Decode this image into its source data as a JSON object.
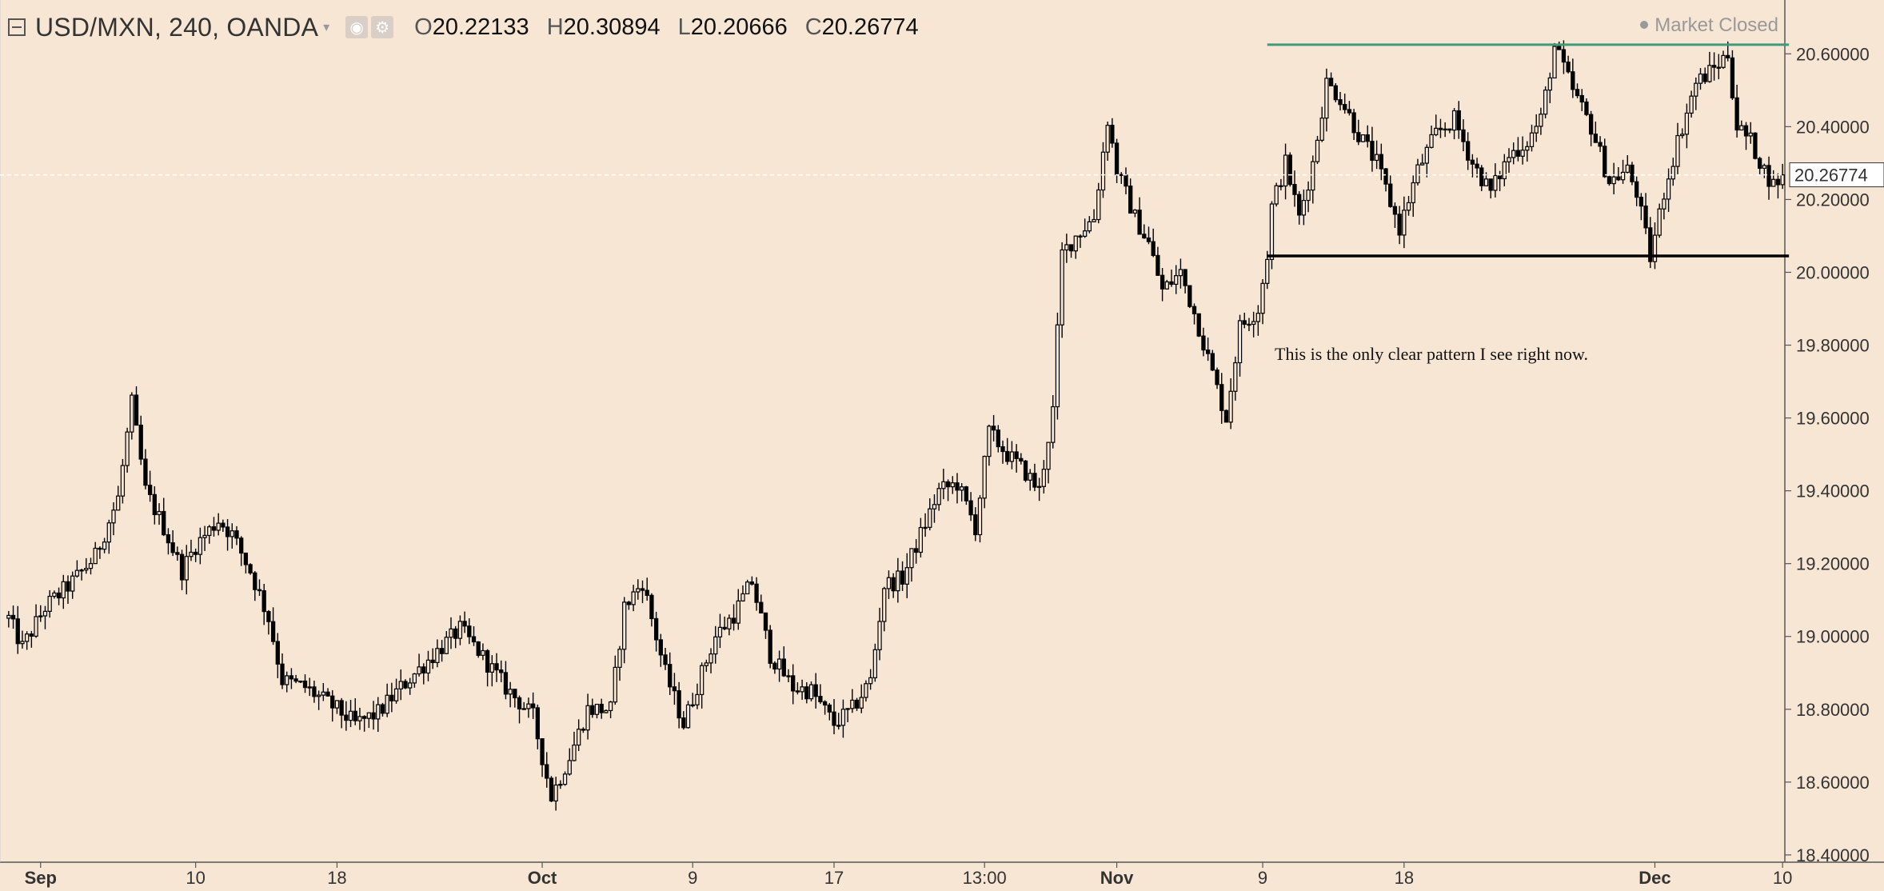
{
  "header": {
    "symbol": "USD/MXN, 240, OANDA",
    "open_label": "O",
    "open": "20.22133",
    "high_label": "H",
    "high": "20.30894",
    "low_label": "L",
    "low": "20.20666",
    "close_label": "C",
    "close": "20.26774"
  },
  "status": {
    "market": "Market Closed"
  },
  "annotation": "This is the only clear pattern I see right now.",
  "current_price_label": "20.26774",
  "chart_data": {
    "type": "candlestick",
    "background": "#f7e6d3",
    "candle_color": "#000000",
    "ylim": [
      18.38,
      20.66
    ],
    "y_ticks": [
      "20.60000",
      "20.40000",
      "20.20000",
      "20.00000",
      "19.80000",
      "19.60000",
      "19.40000",
      "19.20000",
      "19.00000",
      "18.80000",
      "18.60000",
      "18.40000"
    ],
    "y_tick_values": [
      20.6,
      20.4,
      20.2,
      20.0,
      19.8,
      19.6,
      19.4,
      19.2,
      19.0,
      18.8,
      18.6,
      18.4
    ],
    "x_ticks": [
      {
        "label": "Sep",
        "bar": 7,
        "bold": true
      },
      {
        "label": "10",
        "bar": 41,
        "bold": false
      },
      {
        "label": "18",
        "bar": 72,
        "bold": false
      },
      {
        "label": "Oct",
        "bar": 117,
        "bold": true
      },
      {
        "label": "9",
        "bar": 150,
        "bold": false
      },
      {
        "label": "17",
        "bar": 181,
        "bold": false
      },
      {
        "label": "13:00",
        "bar": 214,
        "bold": false
      },
      {
        "label": "Nov",
        "bar": 243,
        "bold": true
      },
      {
        "label": "9",
        "bar": 275,
        "bold": false
      },
      {
        "label": "18",
        "bar": 306,
        "bold": false
      },
      {
        "label": "Dec",
        "bar": 361,
        "bold": true
      },
      {
        "label": "10",
        "bar": 389,
        "bold": false
      }
    ],
    "bar_count": 390,
    "close_path": [
      [
        0,
        19.05
      ],
      [
        3,
        18.97
      ],
      [
        8,
        19.08
      ],
      [
        14,
        19.15
      ],
      [
        19,
        19.22
      ],
      [
        24,
        19.38
      ],
      [
        27,
        19.64
      ],
      [
        30,
        19.4
      ],
      [
        34,
        19.3
      ],
      [
        38,
        19.18
      ],
      [
        41,
        19.25
      ],
      [
        46,
        19.32
      ],
      [
        49,
        19.28
      ],
      [
        53,
        19.18
      ],
      [
        57,
        19.05
      ],
      [
        60,
        18.88
      ],
      [
        65,
        18.86
      ],
      [
        72,
        18.8
      ],
      [
        76,
        18.76
      ],
      [
        81,
        18.79
      ],
      [
        86,
        18.86
      ],
      [
        94,
        18.96
      ],
      [
        99,
        19.02
      ],
      [
        103,
        18.96
      ],
      [
        109,
        18.86
      ],
      [
        115,
        18.78
      ],
      [
        119,
        18.56
      ],
      [
        123,
        18.67
      ],
      [
        127,
        18.8
      ],
      [
        132,
        18.8
      ],
      [
        135,
        19.08
      ],
      [
        139,
        19.15
      ],
      [
        144,
        18.9
      ],
      [
        148,
        18.76
      ],
      [
        152,
        18.9
      ],
      [
        155,
        19.0
      ],
      [
        159,
        19.06
      ],
      [
        163,
        19.15
      ],
      [
        167,
        18.95
      ],
      [
        172,
        18.86
      ],
      [
        176,
        18.85
      ],
      [
        181,
        18.76
      ],
      [
        185,
        18.8
      ],
      [
        189,
        18.88
      ],
      [
        192,
        19.14
      ],
      [
        196,
        19.16
      ],
      [
        200,
        19.28
      ],
      [
        204,
        19.4
      ],
      [
        208,
        19.42
      ],
      [
        212,
        19.3
      ],
      [
        215,
        19.56
      ],
      [
        219,
        19.5
      ],
      [
        223,
        19.45
      ],
      [
        226,
        19.4
      ],
      [
        229,
        19.62
      ],
      [
        231,
        20.05
      ],
      [
        234,
        20.1
      ],
      [
        238,
        20.15
      ],
      [
        241,
        20.42
      ],
      [
        243,
        20.28
      ],
      [
        247,
        20.15
      ],
      [
        250,
        20.08
      ],
      [
        253,
        19.95
      ],
      [
        257,
        20.0
      ],
      [
        261,
        19.85
      ],
      [
        265,
        19.68
      ],
      [
        267,
        19.6
      ],
      [
        270,
        19.85
      ],
      [
        274,
        19.9
      ],
      [
        276,
        20.05
      ],
      [
        277,
        20.18
      ],
      [
        280,
        20.3
      ],
      [
        283,
        20.15
      ],
      [
        286,
        20.3
      ],
      [
        289,
        20.52
      ],
      [
        292,
        20.48
      ],
      [
        296,
        20.38
      ],
      [
        300,
        20.3
      ],
      [
        305,
        20.12
      ],
      [
        309,
        20.28
      ],
      [
        313,
        20.38
      ],
      [
        317,
        20.42
      ],
      [
        321,
        20.3
      ],
      [
        325,
        20.22
      ],
      [
        329,
        20.32
      ],
      [
        333,
        20.36
      ],
      [
        336,
        20.42
      ],
      [
        339,
        20.62
      ],
      [
        343,
        20.5
      ],
      [
        347,
        20.4
      ],
      [
        351,
        20.25
      ],
      [
        355,
        20.28
      ],
      [
        357,
        20.22
      ],
      [
        360,
        20.04
      ],
      [
        363,
        20.22
      ],
      [
        366,
        20.36
      ],
      [
        370,
        20.52
      ],
      [
        374,
        20.56
      ],
      [
        377,
        20.6
      ],
      [
        379,
        20.4
      ],
      [
        382,
        20.36
      ],
      [
        385,
        20.28
      ],
      [
        387,
        20.24
      ],
      [
        389,
        20.267
      ]
    ],
    "resistance_line": {
      "price": 20.625,
      "from_bar": 276,
      "to_bar": 389,
      "color": "#3f9a7c"
    },
    "support_line": {
      "price": 20.045,
      "from_bar": 276,
      "to_bar": 389,
      "color": "#000000"
    },
    "current_price": 20.26774
  }
}
